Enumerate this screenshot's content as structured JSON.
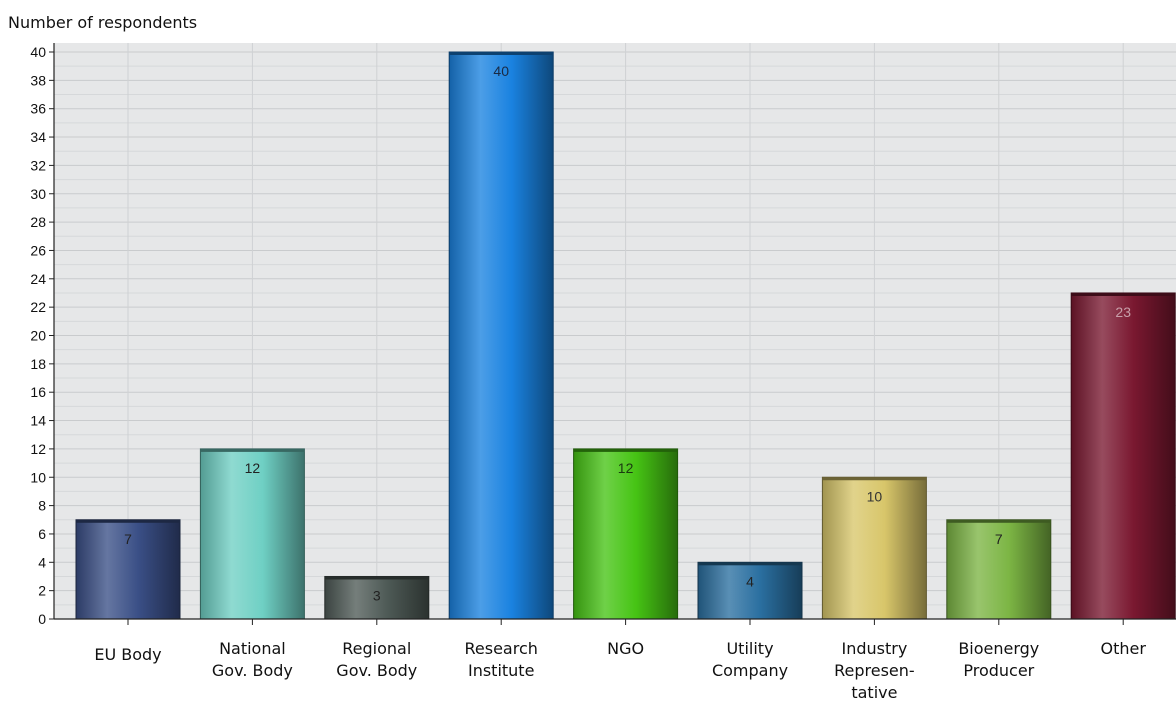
{
  "chart_data": {
    "type": "bar",
    "ylabel": "Number of respondents",
    "xlabel": "",
    "ylim": [
      0,
      40
    ],
    "y_tick_step": 2,
    "grid": true,
    "categories": [
      "EU Body",
      "National Gov. Body",
      "Regional Gov. Body",
      "Research Institute",
      "NGO",
      "Utility Company",
      "Industry Represen-tative",
      "Bioenergy Producer",
      "Other"
    ],
    "category_lines": [
      [
        "EU Body"
      ],
      [
        "National",
        "Gov. Body"
      ],
      [
        "Regional",
        "Gov. Body"
      ],
      [
        "Research",
        "Institute"
      ],
      [
        "NGO"
      ],
      [
        "Utility",
        "Company"
      ],
      [
        "Industry",
        "Represen-",
        "tative"
      ],
      [
        "Bioenergy",
        "Producer"
      ],
      [
        "Other"
      ]
    ],
    "values": [
      7,
      12,
      3,
      40,
      12,
      4,
      10,
      7,
      23
    ],
    "colors": [
      "#3a4f86",
      "#6fd0c4",
      "#4e5a56",
      "#1a82e0",
      "#46c414",
      "#2a6fa0",
      "#d8c66a",
      "#7cb544",
      "#7a1830"
    ],
    "value_label_colors": [
      "#222222",
      "#222222",
      "#222222",
      "#1a2a44",
      "#1a3a10",
      "#222222",
      "#333333",
      "#222222",
      "#c8a0aa"
    ]
  }
}
